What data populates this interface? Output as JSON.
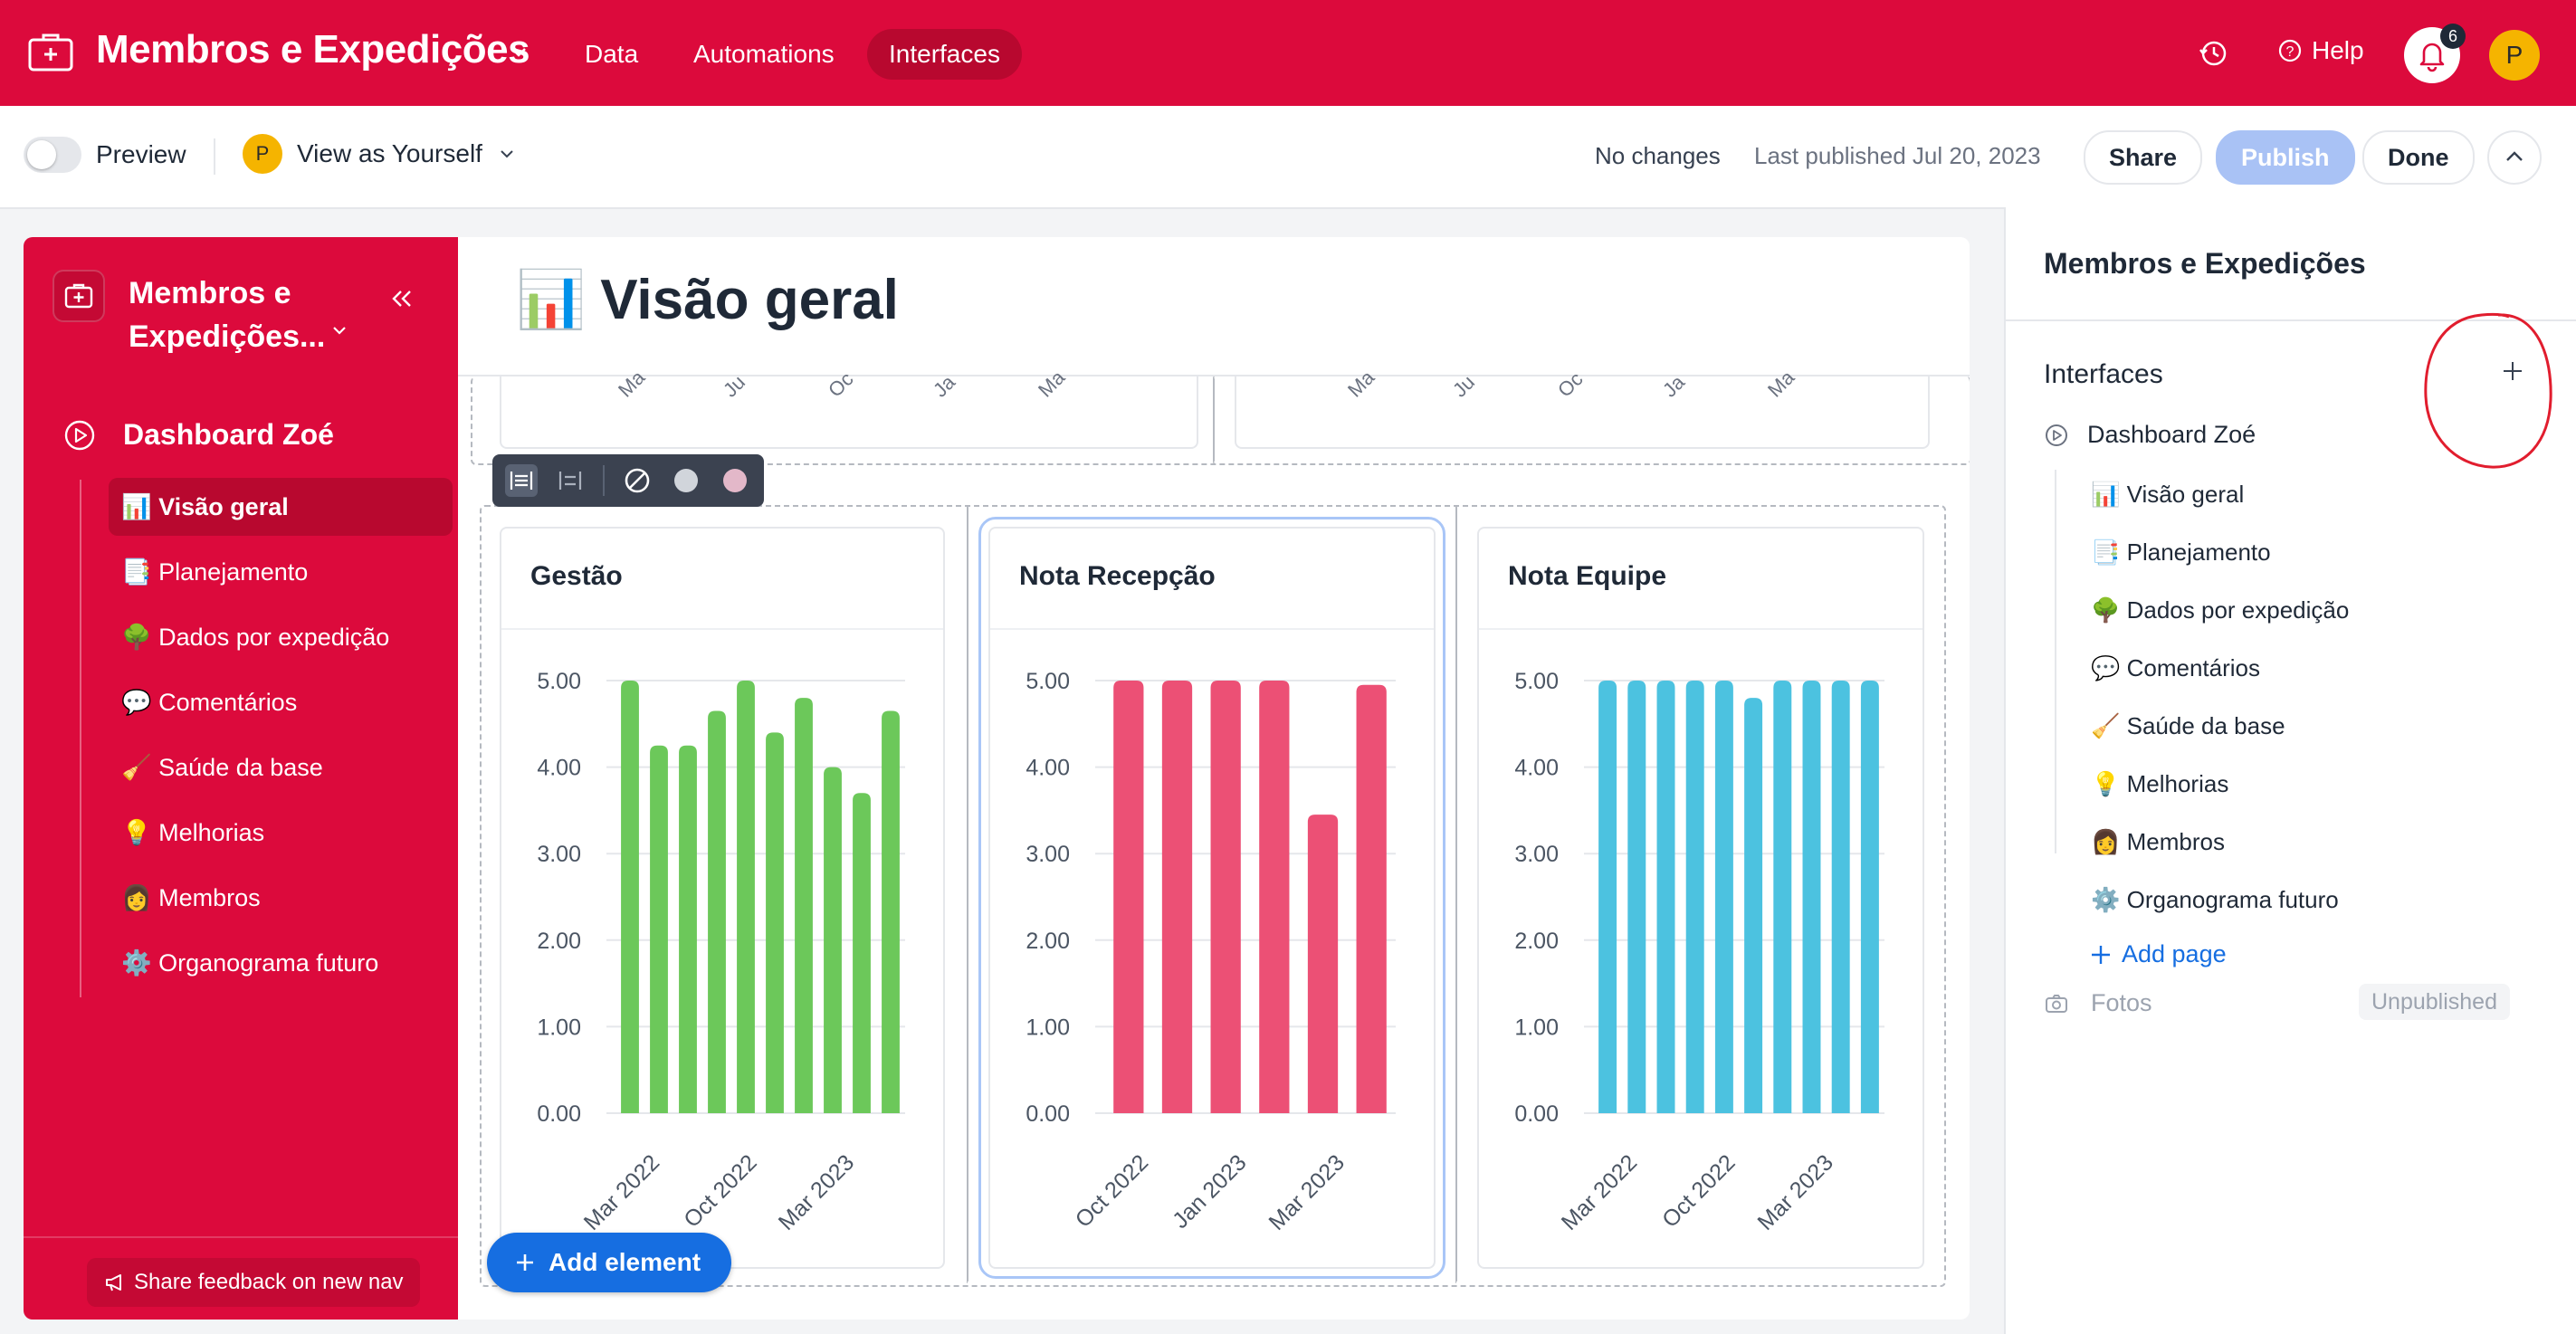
{
  "topbar": {
    "base_title": "Membros e Expedições",
    "nav": [
      "Data",
      "Automations",
      "Interfaces"
    ],
    "active_nav": "Interfaces",
    "help_label": "Help",
    "notification_count": "6",
    "avatar_initial": "P",
    "colors": {
      "brand": "#dc0a3c",
      "active_tab": "#b8082f"
    }
  },
  "subbar": {
    "preview_label": "Preview",
    "view_as_avatar": "P",
    "view_as_label": "View as Yourself",
    "status": "No changes",
    "last_published": "Last published Jul 20, 2023",
    "share_label": "Share",
    "publish_label": "Publish",
    "done_label": "Done"
  },
  "sidebar": {
    "app_title": "Membros e Expedições...",
    "dashboard": "Dashboard Zoé",
    "pages": [
      {
        "icon": "📊",
        "label": "Visão geral",
        "active": true
      },
      {
        "icon": "📑",
        "label": "Planejamento"
      },
      {
        "icon": "🌳",
        "label": "Dados por expedição"
      },
      {
        "icon": "💬",
        "label": "Comentários"
      },
      {
        "icon": "🧹",
        "label": "Saúde da base"
      },
      {
        "icon": "💡",
        "label": "Melhorias"
      },
      {
        "icon": "👩",
        "label": "Membros"
      },
      {
        "icon": "⚙️",
        "label": "Organograma futuro"
      }
    ],
    "feedback_label": "Share feedback on new nav"
  },
  "canvas": {
    "page_icon": "📊",
    "page_title": "Visão geral",
    "prev_ticks": [
      "Ma",
      "Ju",
      "Oc",
      "Ja",
      "Ma"
    ],
    "add_element_label": "Add element"
  },
  "right_panel": {
    "title": "Membros e Expedições",
    "section": "Interfaces",
    "dashboard": "Dashboard Zoé",
    "pages": [
      {
        "icon": "📊",
        "label": "Visão geral"
      },
      {
        "icon": "📑",
        "label": "Planejamento"
      },
      {
        "icon": "🌳",
        "label": "Dados por expedição"
      },
      {
        "icon": "💬",
        "label": "Comentários"
      },
      {
        "icon": "🧹",
        "label": "Saúde da base"
      },
      {
        "icon": "💡",
        "label": "Melhorias"
      },
      {
        "icon": "👩",
        "label": "Membros"
      },
      {
        "icon": "⚙️",
        "label": "Organograma futuro"
      }
    ],
    "add_page_label": "Add page",
    "fotos_label": "Fotos",
    "fotos_status": "Unpublished"
  },
  "chart_data": [
    {
      "type": "bar",
      "title": "Gestão",
      "color": "#6cc85a",
      "ylim": [
        0,
        5
      ],
      "yticks": [
        "0.00",
        "1.00",
        "2.00",
        "3.00",
        "4.00",
        "5.00"
      ],
      "xtick_labels": [
        "Mar 2022",
        "Oct 2022",
        "Mar 2023"
      ],
      "values": [
        5.0,
        4.25,
        4.25,
        4.65,
        5.0,
        4.4,
        4.8,
        4.0,
        3.7,
        4.65
      ]
    },
    {
      "type": "bar",
      "title": "Nota Recepção",
      "color": "#ec5075",
      "ylim": [
        0,
        5
      ],
      "yticks": [
        "0.00",
        "1.00",
        "2.00",
        "3.00",
        "4.00",
        "5.00"
      ],
      "xtick_labels": [
        "Oct 2022",
        "Jan 2023",
        "Mar 2023"
      ],
      "values": [
        5.0,
        5.0,
        5.0,
        5.0,
        3.45,
        4.95
      ]
    },
    {
      "type": "bar",
      "title": "Nota Equipe",
      "color": "#4cc2e0",
      "ylim": [
        0,
        5
      ],
      "yticks": [
        "0.00",
        "1.00",
        "2.00",
        "3.00",
        "4.00",
        "5.00"
      ],
      "xtick_labels": [
        "Mar 2022",
        "Oct 2022",
        "Mar 2023"
      ],
      "values": [
        5.0,
        5.0,
        5.0,
        5.0,
        5.0,
        4.8,
        5.0,
        5.0,
        5.0,
        5.0
      ]
    }
  ]
}
